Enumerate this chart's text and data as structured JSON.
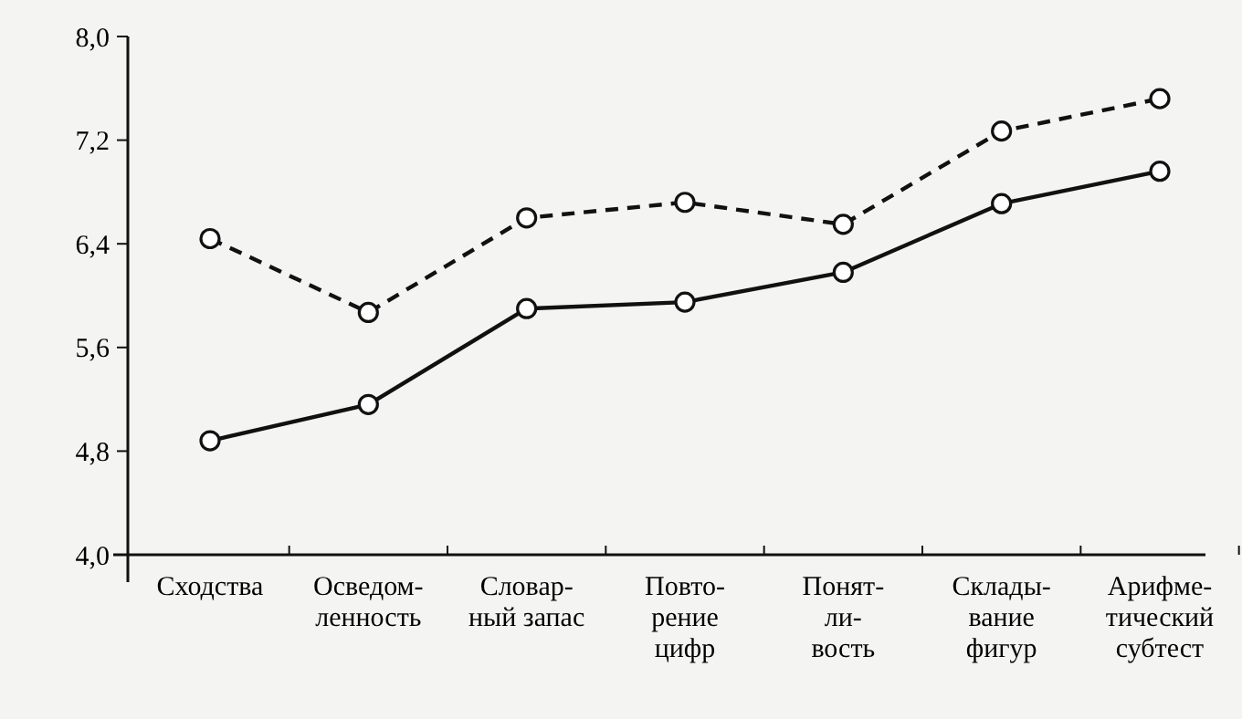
{
  "chart_data": {
    "type": "line",
    "categories": [
      "Сходства",
      "Осведом-\nленность",
      "Словар-\nный запас",
      "Повто-\nрение\nцифр",
      "Понят-\nли-\nвость",
      "Склады-\nвание\nфигур",
      "Арифме-\nтический\nсубтест"
    ],
    "series": [
      {
        "color": "#111111",
        "line_style": "dashed",
        "values": [
          6.44,
          5.87,
          6.6,
          6.72,
          6.55,
          7.27,
          7.52
        ]
      },
      {
        "color": "#111111",
        "line_style": "solid",
        "values": [
          4.88,
          5.16,
          5.9,
          5.95,
          6.18,
          6.71,
          6.96
        ]
      }
    ],
    "ylim": [
      4.0,
      8.0
    ],
    "yticks": [
      {
        "value": 4.0,
        "label": "4,0"
      },
      {
        "value": 4.8,
        "label": "4,8"
      },
      {
        "value": 5.6,
        "label": "5,6"
      },
      {
        "value": 6.4,
        "label": "6,4"
      },
      {
        "value": 7.2,
        "label": "7,2"
      },
      {
        "value": 8.0,
        "label": "8,0"
      }
    ],
    "marker": "circle"
  }
}
